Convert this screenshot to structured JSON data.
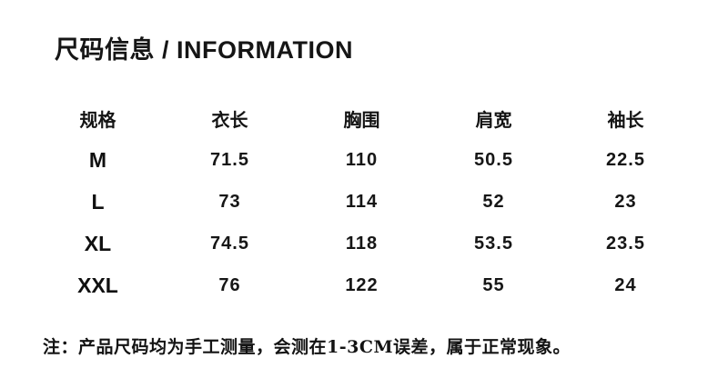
{
  "page": {
    "background_color": "#ffffff",
    "text_color": "#111111"
  },
  "title": "尺码信息 / INFORMATION",
  "size_table": {
    "columns": [
      "规格",
      "衣长",
      "胸围",
      "肩宽",
      "袖长"
    ],
    "rows": [
      [
        "M",
        "71.5",
        "110",
        "50.5",
        "22.5"
      ],
      [
        "L",
        "73",
        "114",
        "52",
        "23"
      ],
      [
        "XL",
        "74.5",
        "118",
        "53.5",
        "23.5"
      ],
      [
        "XXL",
        "76",
        "122",
        "55",
        "24"
      ]
    ]
  },
  "note": "注：产品尺码均为手工测量，会测在1-3CM误差，属于正常现象。"
}
